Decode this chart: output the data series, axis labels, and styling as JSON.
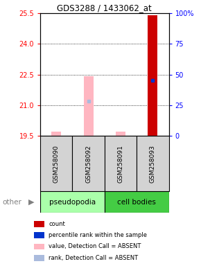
{
  "title": "GDS3288 / 1433062_at",
  "samples": [
    "GSM258090",
    "GSM258092",
    "GSM258091",
    "GSM258093"
  ],
  "ylim": [
    19.5,
    25.5
  ],
  "yticks_left": [
    19.5,
    21.0,
    22.5,
    24.0,
    25.5
  ],
  "yticks_right_pct": [
    0,
    25,
    50,
    75,
    100
  ],
  "yticks_right_labels": [
    "0",
    "25",
    "50",
    "75",
    "100%"
  ],
  "bar_values_pink": [
    19.7,
    22.4,
    19.7,
    null
  ],
  "bar_values_red": [
    null,
    null,
    null,
    25.4
  ],
  "rank_lightblue_y": [
    null,
    21.2,
    null,
    null
  ],
  "rank_blue_y": [
    null,
    null,
    null,
    22.2
  ],
  "bar_color_red": "#cc0000",
  "bar_color_pink": "#ffb6c1",
  "rank_color_blue": "#0033cc",
  "rank_color_lightblue": "#aabbdd",
  "sample_box_color": "#d3d3d3",
  "pseudo_color": "#aaffaa",
  "cell_color": "#44cc44",
  "legend_items": [
    {
      "color": "#cc0000",
      "label": "count"
    },
    {
      "color": "#0033cc",
      "label": "percentile rank within the sample"
    },
    {
      "color": "#ffb6c1",
      "label": "value, Detection Call = ABSENT"
    },
    {
      "color": "#aabbdd",
      "label": "rank, Detection Call = ABSENT"
    }
  ],
  "dotted_lines": [
    21.0,
    22.5,
    24.0
  ],
  "bar_width": 0.3
}
